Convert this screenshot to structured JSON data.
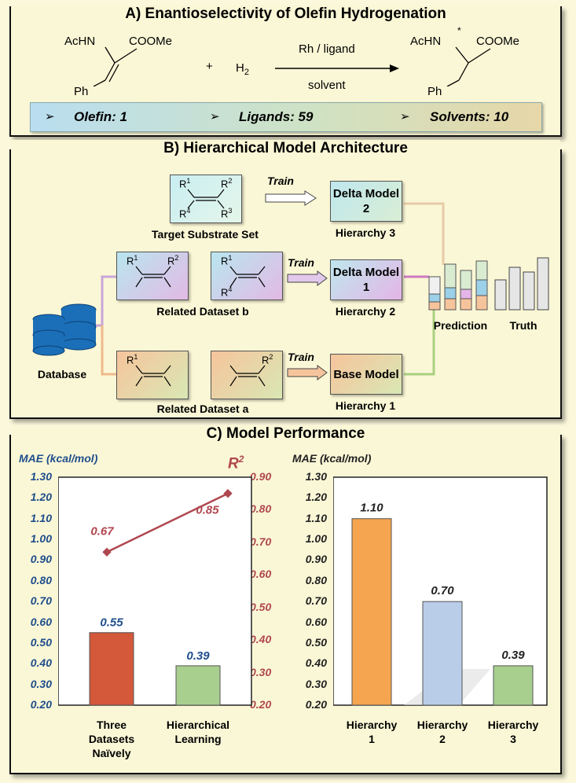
{
  "panel_a": {
    "title": "A) Enantioselectivity of Olefin Hydrogenation",
    "reactant_nh": "AcHN",
    "reactant_ester": "COOMe",
    "reactant_ph": "Ph",
    "plus": "+",
    "h2": "H",
    "h2_sub": "2",
    "catalyst": "Rh / ligand",
    "solvent": "solvent",
    "product_nh": "AcHN",
    "product_star": "*",
    "product_ester": "COOMe",
    "product_ph": "Ph",
    "stats": [
      {
        "bullet": "➢",
        "text": "Olefin: 1"
      },
      {
        "bullet": "➢",
        "text": "Ligands: 59"
      },
      {
        "bullet": "➢",
        "text": "Solvents: 10"
      }
    ]
  },
  "panel_b": {
    "title": "B) Hierarchical Model Architecture",
    "target_set": "Target Substrate Set",
    "related_b": "Related Dataset b",
    "related_a": "Related Dataset a",
    "database": "Database",
    "train": "Train",
    "delta2": "Delta Model 2",
    "delta1": "Delta Model 1",
    "base": "Base Model",
    "hier3": "Hierarchy 3",
    "hier2": "Hierarchy 2",
    "hier1": "Hierarchy 1",
    "prediction": "Prediction",
    "truth": "Truth",
    "r": {
      "r1": "R",
      "r2": "R",
      "r3": "R",
      "r4": "R",
      "s1": "1",
      "s2": "2",
      "s3": "3",
      "s4": "4"
    }
  },
  "panel_c": {
    "title": "C) Model Performance"
  },
  "colors": {
    "bar_red": "#d4583a",
    "bar_green": "#a8cf8e",
    "bar_orange": "#f5a44f",
    "bar_blue": "#b9cde8",
    "line_red": "#b0474f",
    "axis_blue": "#1f4e8c"
  },
  "chart_data": [
    {
      "type": "bar",
      "ylabel": "MAE (kcal/mol)",
      "y2label": "R²",
      "ylim": [
        0.2,
        1.3
      ],
      "y2lim": [
        0.2,
        0.9
      ],
      "yticks": [
        "1.30",
        "1.20",
        "1.10",
        "1.00",
        "0.90",
        "0.80",
        "0.70",
        "0.60",
        "0.50",
        "0.40",
        "0.30",
        "0.20"
      ],
      "y2ticks": [
        "0.90",
        "0.80",
        "0.70",
        "0.60",
        "0.50",
        "0.40",
        "0.30",
        "0.20"
      ],
      "categories": [
        "Three Datasets Naïvely",
        "Hierarchical Learning"
      ],
      "category_lines": [
        [
          "Three",
          "Datasets",
          "Naïvely"
        ],
        [
          "Hierarchical",
          "Learning"
        ]
      ],
      "series": [
        {
          "name": "MAE",
          "values": [
            0.55,
            0.39
          ],
          "labels": [
            "0.55",
            "0.39"
          ]
        },
        {
          "name": "R²",
          "values": [
            0.67,
            0.85
          ],
          "labels": [
            "0.67",
            "0.85"
          ]
        }
      ]
    },
    {
      "type": "bar",
      "ylabel": "MAE (kcal/mol)",
      "ylim": [
        0.2,
        1.3
      ],
      "yticks": [
        "1.30",
        "1.20",
        "1.10",
        "1.00",
        "0.90",
        "0.80",
        "0.70",
        "0.60",
        "0.50",
        "0.40",
        "0.30",
        "0.20"
      ],
      "categories": [
        "Hierarchy 1",
        "Hierarchy 2",
        "Hierarchy 3"
      ],
      "category_lines": [
        [
          "Hierarchy",
          "1"
        ],
        [
          "Hierarchy",
          "2"
        ],
        [
          "Hierarchy",
          "3"
        ]
      ],
      "values": [
        1.1,
        0.7,
        0.39
      ],
      "labels": [
        "1.10",
        "0.70",
        "0.39"
      ]
    }
  ]
}
